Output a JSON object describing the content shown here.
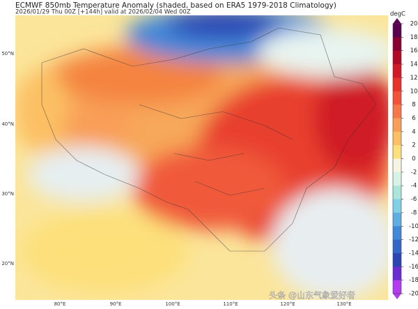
{
  "header": {
    "title": "ECMWF 850mb Temperature Anomaly (shaded, based on ERA5 1979-2018 Climatology)",
    "subtitle": "2026/01/29 Thu 00Z [+144h] valid at 2026/02/04 Wed 00Z"
  },
  "map": {
    "lat_labels": [
      "50°N",
      "40°N",
      "30°N",
      "20°N"
    ],
    "lon_labels": [
      "80°E",
      "90°E",
      "100°E",
      "110°E",
      "120°E",
      "130°E"
    ]
  },
  "colorbar": {
    "unit": "degC",
    "ticks": [
      20,
      18,
      16,
      14,
      12,
      10,
      8,
      6,
      4,
      2,
      0,
      -2,
      -4,
      -6,
      -8,
      -10,
      -12,
      -14,
      -16,
      -18,
      -20
    ],
    "colors": [
      "#5a0050",
      "#8a0030",
      "#b00a26",
      "#d01a28",
      "#e8302c",
      "#f2523a",
      "#f6784a",
      "#f99e58",
      "#fcc064",
      "#fde07a",
      "#f7f4e4",
      "#d8f2e6",
      "#ace6da",
      "#82d0e6",
      "#5eaee2",
      "#4488d8",
      "#3466c8",
      "#2a44b4",
      "#6a2cd0",
      "#b23cf0"
    ]
  },
  "watermark": "头条 @山东气象爱好者"
}
